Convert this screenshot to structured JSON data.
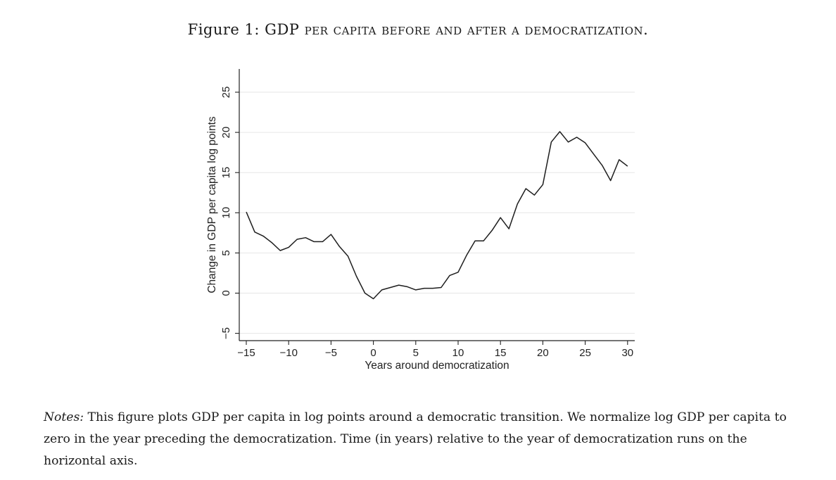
{
  "figure": {
    "label": "Figure 1:",
    "title_text": "GDP per capita before and after a democratization."
  },
  "chart_data": {
    "type": "line",
    "xlabel": "Years around democratization",
    "ylabel": "Change in GDP per capita log points",
    "xlim": [
      -15,
      30
    ],
    "ylim": [
      -5,
      28
    ],
    "xticks": [
      -15,
      -10,
      -5,
      0,
      5,
      10,
      15,
      20,
      25,
      30
    ],
    "xtick_labels": [
      "−15",
      "−10",
      "−5",
      "0",
      "5",
      "10",
      "15",
      "20",
      "25",
      "30"
    ],
    "yticks": [
      -5,
      0,
      5,
      10,
      15,
      20,
      25
    ],
    "ytick_labels": [
      "−5",
      "0",
      "5",
      "10",
      "15",
      "20",
      "25"
    ],
    "grid": true,
    "series": [
      {
        "x": [
          -15,
          -14,
          -13,
          -12,
          -11,
          -10,
          -9,
          -8,
          -7,
          -6,
          -5,
          -4,
          -3,
          -2,
          -1,
          0,
          1,
          2,
          3,
          4,
          5,
          6,
          7,
          8,
          9,
          10,
          11,
          12,
          13,
          14,
          15,
          16,
          17,
          18,
          19,
          20,
          21,
          22,
          23,
          24,
          25,
          26,
          27,
          28,
          29,
          30
        ],
        "values": [
          10.1,
          7.6,
          7.1,
          6.3,
          5.3,
          5.7,
          6.7,
          6.9,
          6.4,
          6.4,
          7.3,
          5.8,
          4.6,
          2.1,
          0.0,
          -0.7,
          0.4,
          0.7,
          1.0,
          0.8,
          0.4,
          0.6,
          0.6,
          0.7,
          2.2,
          2.6,
          4.7,
          6.5,
          6.5,
          7.8,
          9.4,
          8.0,
          11.1,
          13.0,
          12.2,
          13.5,
          18.8,
          20.1,
          18.8,
          19.4,
          18.7,
          17.3,
          15.9,
          14.0,
          16.6,
          15.8
        ]
      }
    ]
  },
  "notes": {
    "label": "Notes:",
    "text": " This figure plots GDP per capita in log points around a democratic transition. We normalize log GDP per capita to zero in the year preceding the democratization. Time (in years) relative to the year of democratization runs on the horizontal axis."
  }
}
